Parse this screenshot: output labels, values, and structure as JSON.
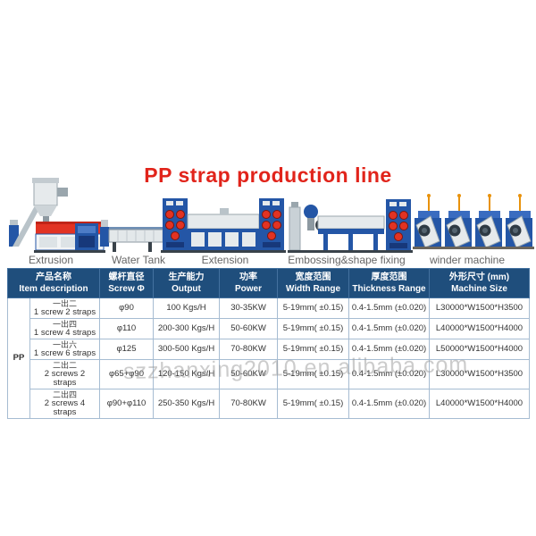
{
  "title": {
    "text": "PP strap production line"
  },
  "machines": {
    "labels": [
      "Extrusion",
      "Water Tank",
      "Extension",
      "Embossing&shape fixing",
      "winder machine"
    ]
  },
  "watermark": "szzhanxing2010.en.alibaba.com",
  "colors": {
    "title_red": "#e1241b",
    "header_bg": "#1f4e7c",
    "machine_blue": "#2456a6",
    "machine_red": "#e23323"
  },
  "table": {
    "group_label": "PP",
    "headers": [
      {
        "zh": "产品名称",
        "en": "Item description"
      },
      {
        "zh": "螺杆直径",
        "en": "Screw Φ"
      },
      {
        "zh": "生产能力",
        "en": "Output"
      },
      {
        "zh": "功率",
        "en": "Power"
      },
      {
        "zh": "宽度范围",
        "en": "Width Range"
      },
      {
        "zh": "厚度范围",
        "en": "Thickness Range"
      },
      {
        "zh": "外形尺寸 (mm)",
        "en": "Machine Size"
      }
    ],
    "rows": [
      {
        "zh": "一出二",
        "en": "1 screw 2 straps",
        "screw": "φ90",
        "output": "100 Kgs/H",
        "power": "30-35KW",
        "width": "5-19mm( ±0.15)",
        "thickness": "0.4-1.5mm (±0.020)",
        "size": "L30000*W1500*H3500"
      },
      {
        "zh": "一出四",
        "en": "1 screw 4 straps",
        "screw": "φ110",
        "output": "200-300 Kgs/H",
        "power": "50-60KW",
        "width": "5-19mm( ±0.15)",
        "thickness": "0.4-1.5mm (±0.020)",
        "size": "L40000*W1500*H4000"
      },
      {
        "zh": "一出六",
        "en": "1 screw 6 straps",
        "screw": "φ125",
        "output": "300-500 Kgs/H",
        "power": "70-80KW",
        "width": "5-19mm( ±0.15)",
        "thickness": "0.4-1.5mm (±0.020)",
        "size": "L50000*W1500*H4000"
      },
      {
        "zh": "二出二",
        "en": "2 screws 2 straps",
        "screw": "φ65+φ90",
        "output": "120-150 Kgs/H",
        "power": "50-60KW",
        "width": "5-19mm( ±0.15)",
        "thickness": "0.4-1.5mm (±0.020)",
        "size": "L30000*W1500*H3500"
      },
      {
        "zh": "二出四",
        "en": "2 screws 4 straps",
        "screw": "φ90+φ110",
        "output": "250-350 Kgs/H",
        "power": "70-80KW",
        "width": "5-19mm( ±0.15)",
        "thickness": "0.4-1.5mm (±0.020)",
        "size": "L40000*W1500*H4000"
      }
    ]
  }
}
